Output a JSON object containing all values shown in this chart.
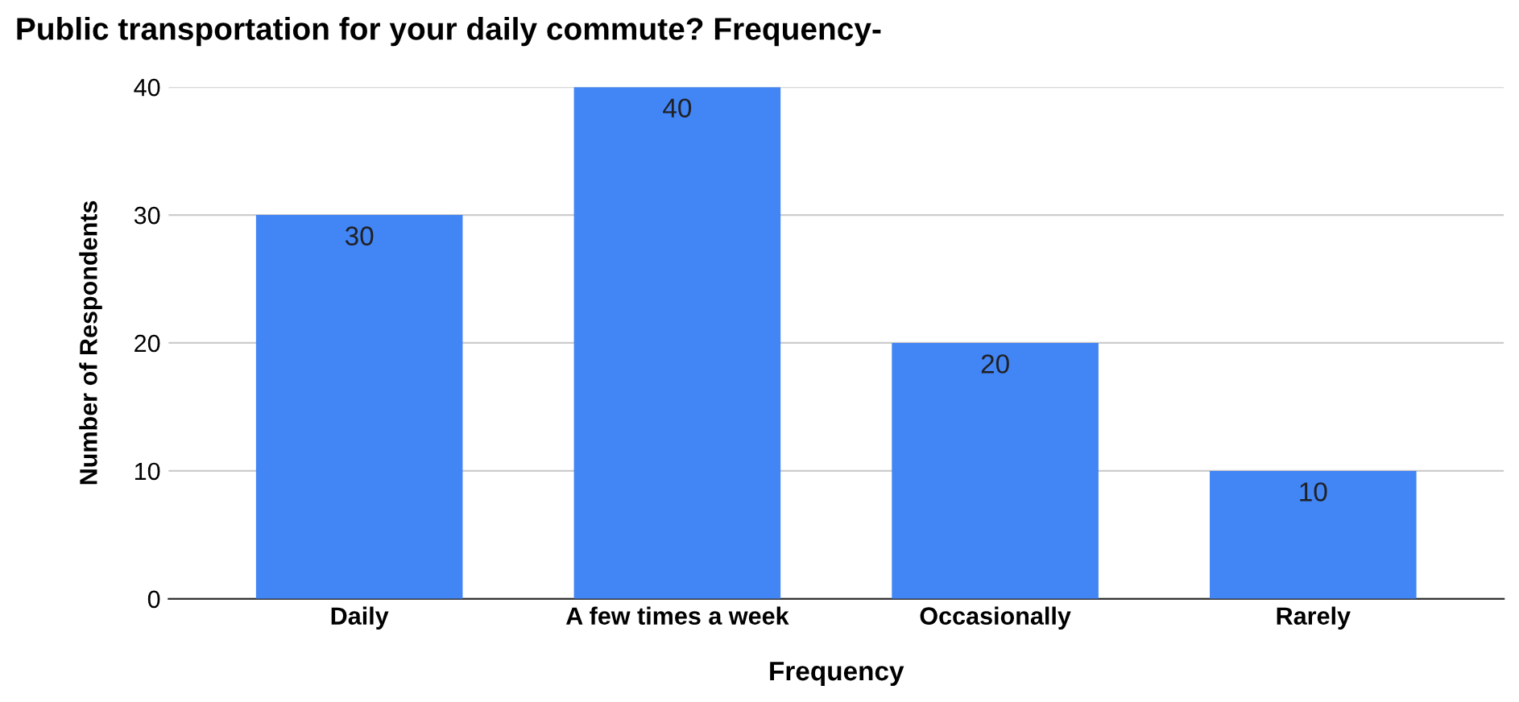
{
  "chart_data": {
    "type": "bar",
    "title": "Public transportation for your daily commute? Frequency-",
    "xlabel": "Frequency",
    "ylabel": "Number of Respondents",
    "categories": [
      "Daily",
      "A few times a week",
      "Occasionally",
      "Rarely"
    ],
    "values": [
      30,
      40,
      20,
      10
    ],
    "color": "#4285f4",
    "ylim": [
      0,
      40
    ],
    "yticks": [
      0,
      10,
      20,
      30,
      40
    ],
    "grid": "y",
    "data_labels": true
  }
}
